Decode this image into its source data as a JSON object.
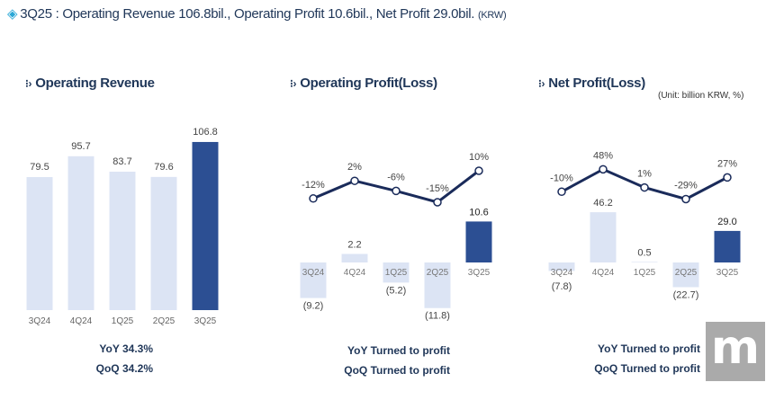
{
  "headline": {
    "icon": "diamond-icon",
    "text": "3Q25 :  Operating Revenue 106.8bil., Operating Profit 10.6bil., Net Profit 29.0bil.",
    "unit": "(KRW)"
  },
  "unit_note": "(Unit: billion KRW, %)",
  "colors": {
    "bar_light": "#dce4f4",
    "bar_dark": "#2c4f93",
    "line": "#1a2b5a",
    "text": "#1f3658"
  },
  "chart_data": [
    {
      "type": "bar",
      "title": "Operating Revenue",
      "categories": [
        "3Q24",
        "4Q24",
        "1Q25",
        "2Q25",
        "3Q25"
      ],
      "values": [
        79.5,
        95.7,
        83.7,
        79.6,
        106.8
      ],
      "labels": [
        "79.5",
        "95.7",
        "83.7",
        "79.6",
        "106.8"
      ],
      "summary": [
        "YoY  34.3%",
        "QoQ  34.2%"
      ]
    },
    {
      "type": "bar+line",
      "title": "Operating Profit(Loss)",
      "categories": [
        "3Q24",
        "4Q24",
        "1Q25",
        "2Q25",
        "3Q25"
      ],
      "values": [
        -9.2,
        2.2,
        -5.2,
        -11.8,
        10.6
      ],
      "labels": [
        "(9.2)",
        "2.2",
        "(5.2)",
        "(11.8)",
        "10.6"
      ],
      "margin_pct": [
        -12,
        2,
        -6,
        -15,
        10
      ],
      "margin_labels": [
        "-12%",
        "2%",
        "-6%",
        "-15%",
        "10%"
      ],
      "summary": [
        "YoY Turned to profit",
        "QoQ Turned to profit"
      ]
    },
    {
      "type": "bar+line",
      "title": "Net Profit(Loss)",
      "categories": [
        "3Q24",
        "4Q24",
        "1Q25",
        "2Q25",
        "3Q25"
      ],
      "values": [
        -7.8,
        46.2,
        0.5,
        -22.7,
        29.0
      ],
      "labels": [
        "(7.8)",
        "46.2",
        "0.5",
        "(22.7)",
        "29.0"
      ],
      "margin_pct": [
        -10,
        48,
        1,
        -29,
        27
      ],
      "margin_labels": [
        "-10%",
        "48%",
        "1%",
        "-29%",
        "27%"
      ],
      "summary": [
        "YoY Turned to profit",
        "QoQ Turned to profit"
      ]
    }
  ],
  "watermark": "m"
}
